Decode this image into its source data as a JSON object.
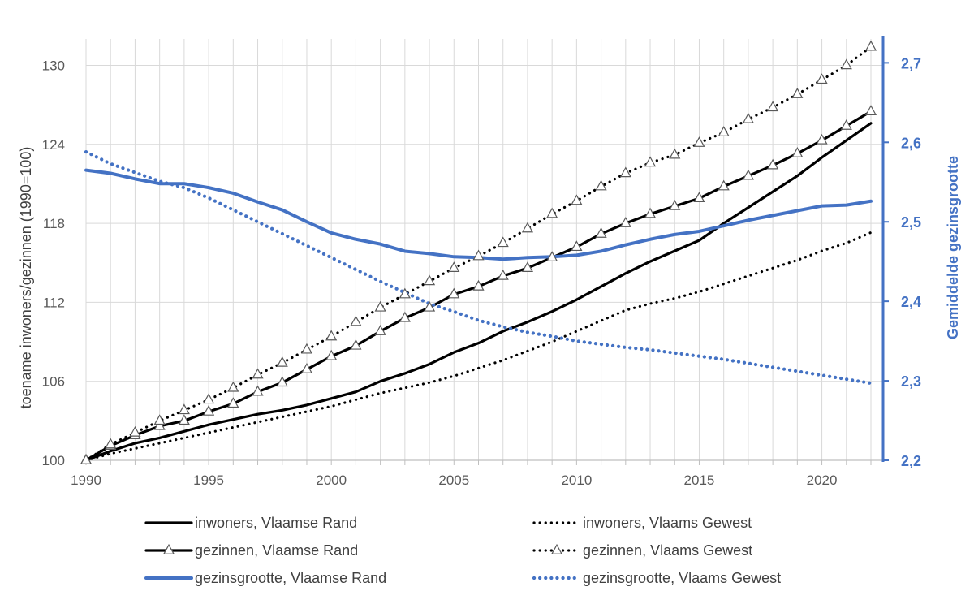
{
  "chart_data": {
    "type": "line",
    "title": "",
    "xlabel": "",
    "ylabel": "toename inwoners/gezinnen (1990=100)",
    "y2label": "Gemiddelde gezinsgrootte",
    "xlim": [
      1990,
      2022
    ],
    "ylim": [
      100,
      132
    ],
    "y2lim": [
      2.2,
      2.73
    ],
    "x_ticks": [
      1990,
      1995,
      2000,
      2005,
      2010,
      2015,
      2020
    ],
    "x_tick_labels": [
      "1990",
      "1995",
      "2000",
      "2005",
      "2010",
      "2015",
      "2020"
    ],
    "y_ticks": [
      100,
      106,
      112,
      118,
      124,
      130
    ],
    "y_tick_labels": [
      "100",
      "106",
      "112",
      "118",
      "124",
      "130"
    ],
    "y2_ticks": [
      2.2,
      2.3,
      2.4,
      2.5,
      2.6,
      2.7
    ],
    "y2_tick_labels": [
      "2,2",
      "2,3",
      "2,4",
      "2,5",
      "2,6",
      "2,7"
    ],
    "grid": true,
    "legend_position": "bottom",
    "x": [
      1990,
      1991,
      1992,
      1993,
      1994,
      1995,
      1996,
      1997,
      1998,
      1999,
      2000,
      2001,
      2002,
      2003,
      2004,
      2005,
      2006,
      2007,
      2008,
      2009,
      2010,
      2011,
      2012,
      2013,
      2014,
      2015,
      2016,
      2017,
      2018,
      2019,
      2020,
      2021,
      2022
    ],
    "series": [
      {
        "name": "inwoners, Vlaamse Rand",
        "axis": "left",
        "color": "#000000",
        "style": "solid",
        "marker": "none",
        "values": [
          100,
          100.7,
          101.3,
          101.7,
          102.2,
          102.7,
          103.1,
          103.5,
          103.8,
          104.2,
          104.7,
          105.2,
          106.0,
          106.6,
          107.3,
          108.2,
          108.9,
          109.8,
          110.5,
          111.3,
          112.2,
          113.2,
          114.2,
          115.1,
          115.9,
          116.7,
          118.0,
          119.2,
          120.4,
          121.6,
          123.0,
          124.3,
          125.6
        ]
      },
      {
        "name": "inwoners, Vlaams Gewest",
        "axis": "left",
        "color": "#000000",
        "style": "dotted",
        "marker": "none",
        "values": [
          100,
          100.5,
          100.9,
          101.3,
          101.7,
          102.1,
          102.5,
          102.9,
          103.3,
          103.7,
          104.1,
          104.6,
          105.1,
          105.5,
          105.9,
          106.4,
          107.0,
          107.6,
          108.3,
          109.0,
          109.8,
          110.6,
          111.4,
          111.9,
          112.3,
          112.8,
          113.4,
          114.0,
          114.6,
          115.2,
          115.9,
          116.5,
          117.3
        ]
      },
      {
        "name": "gezinnen, Vlaamse Rand",
        "axis": "left",
        "color": "#000000",
        "style": "solid",
        "marker": "triangle",
        "values": [
          100,
          101.1,
          101.9,
          102.6,
          103.0,
          103.7,
          104.3,
          105.2,
          105.9,
          106.9,
          107.9,
          108.7,
          109.8,
          110.8,
          111.6,
          112.6,
          113.2,
          114.0,
          114.6,
          115.4,
          116.2,
          117.2,
          118.0,
          118.7,
          119.3,
          119.9,
          120.8,
          121.6,
          122.4,
          123.3,
          124.3,
          125.4,
          126.5
        ]
      },
      {
        "name": "gezinnen, Vlaams Gewest",
        "axis": "left",
        "color": "#000000",
        "style": "dotted",
        "marker": "triangle",
        "values": [
          100,
          101.2,
          102.1,
          103.0,
          103.8,
          104.6,
          105.5,
          106.5,
          107.4,
          108.4,
          109.4,
          110.5,
          111.6,
          112.6,
          113.6,
          114.6,
          115.5,
          116.5,
          117.6,
          118.7,
          119.7,
          120.8,
          121.8,
          122.6,
          123.2,
          124.1,
          124.9,
          125.9,
          126.8,
          127.8,
          128.9,
          130.0,
          131.4
        ]
      },
      {
        "name": "gezinsgrootte, Vlaamse Rand",
        "axis": "right",
        "color": "#4472C4",
        "style": "solid",
        "marker": "none",
        "values": [
          2.565,
          2.561,
          2.554,
          2.548,
          2.548,
          2.543,
          2.536,
          2.525,
          2.515,
          2.5,
          2.486,
          2.478,
          2.472,
          2.463,
          2.46,
          2.456,
          2.455,
          2.453,
          2.455,
          2.456,
          2.458,
          2.463,
          2.471,
          2.478,
          2.484,
          2.488,
          2.495,
          2.502,
          2.508,
          2.514,
          2.52,
          2.521,
          2.526
        ]
      },
      {
        "name": "gezinsgrootte, Vlaams Gewest",
        "axis": "right",
        "color": "#4472C4",
        "style": "dotted",
        "marker": "none",
        "values": [
          2.588,
          2.573,
          2.562,
          2.551,
          2.543,
          2.53,
          2.515,
          2.5,
          2.485,
          2.47,
          2.455,
          2.44,
          2.425,
          2.411,
          2.397,
          2.387,
          2.376,
          2.368,
          2.361,
          2.356,
          2.35,
          2.346,
          2.342,
          2.339,
          2.335,
          2.331,
          2.327,
          2.322,
          2.317,
          2.312,
          2.307,
          2.302,
          2.297
        ]
      }
    ]
  }
}
